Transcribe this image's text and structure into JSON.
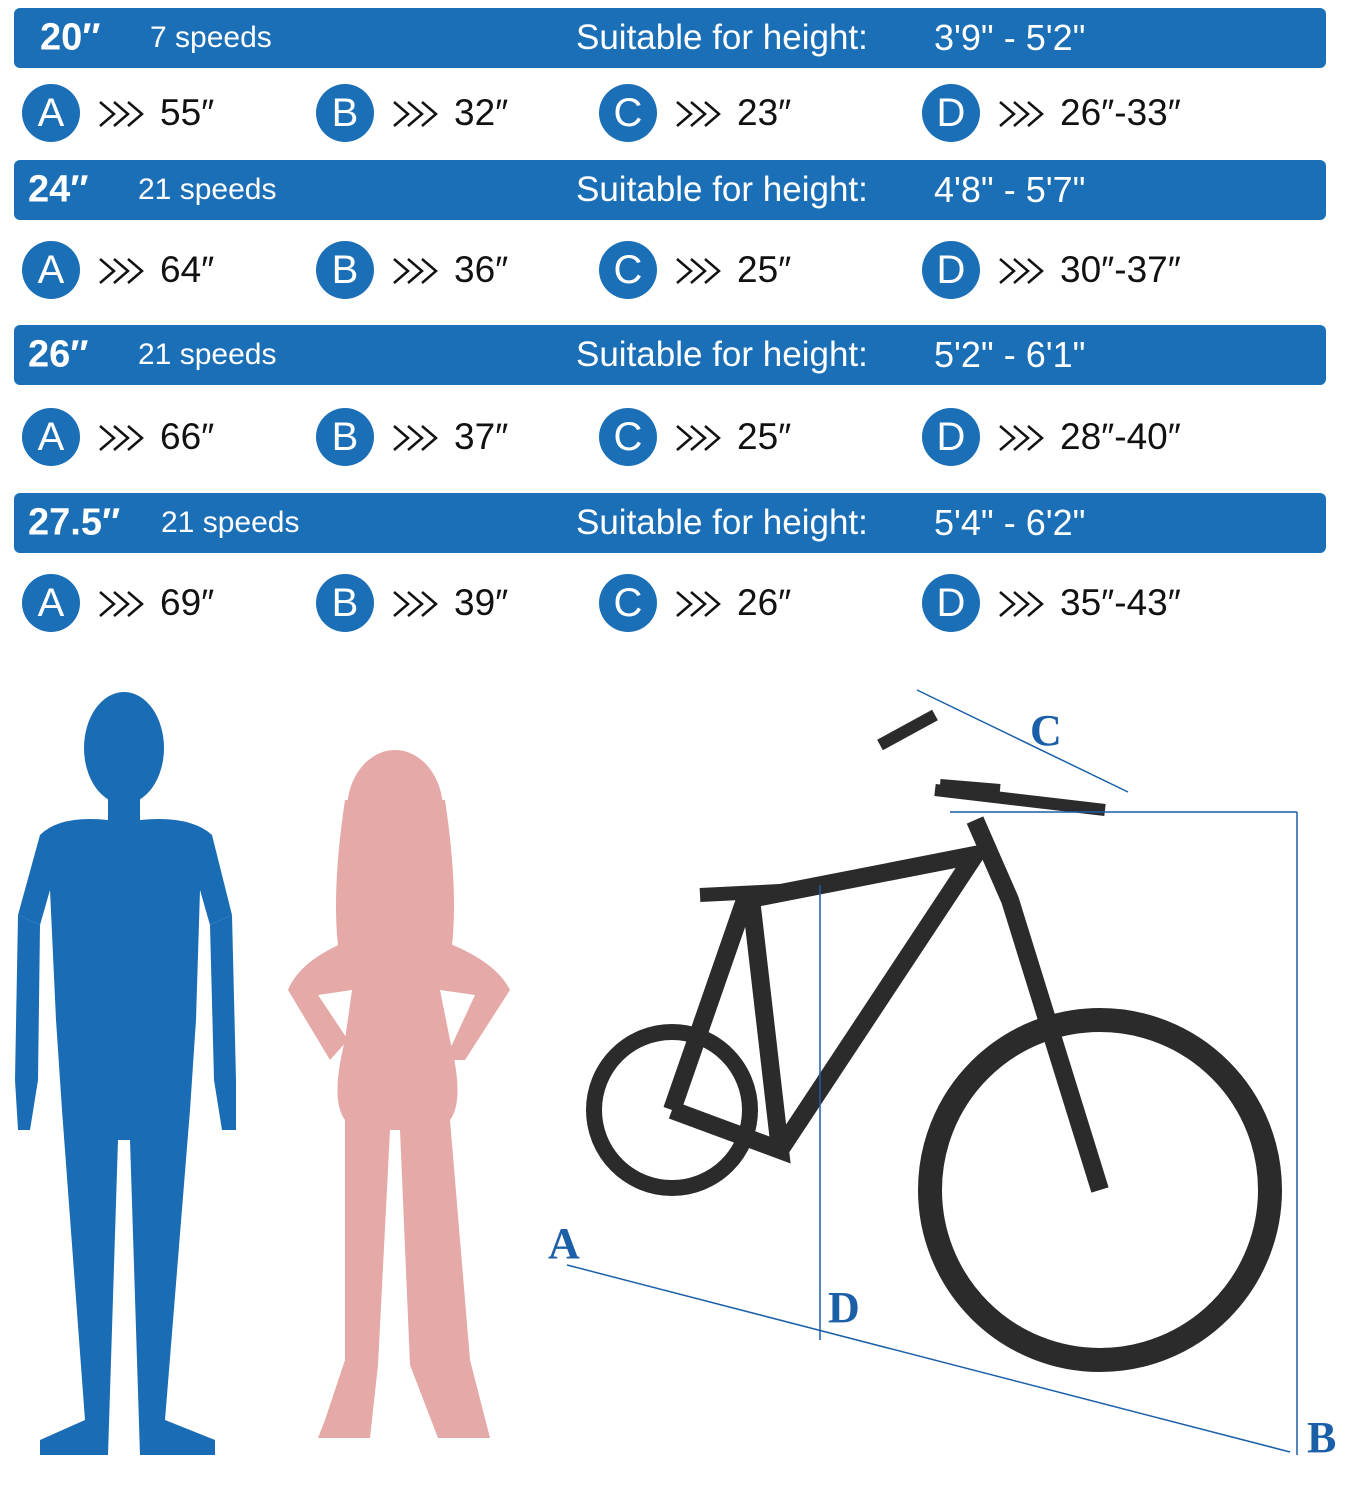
{
  "sizes": [
    {
      "size": "20″",
      "speeds": "7 speeds",
      "height_label": "Suitable for height:",
      "height": "3'9\" - 5'2\"",
      "measures": [
        {
          "letter": "A",
          "value": "55″"
        },
        {
          "letter": "B",
          "value": "32″"
        },
        {
          "letter": "C",
          "value": "23″"
        },
        {
          "letter": "D",
          "value": "26″-33″"
        }
      ]
    },
    {
      "size": "24″",
      "speeds": "21 speeds",
      "height_label": "Suitable for height:",
      "height": "4'8\" - 5'7\"",
      "measures": [
        {
          "letter": "A",
          "value": "64″"
        },
        {
          "letter": "B",
          "value": "36″"
        },
        {
          "letter": "C",
          "value": "25″"
        },
        {
          "letter": "D",
          "value": "30″-37″"
        }
      ]
    },
    {
      "size": "26″",
      "speeds": "21 speeds",
      "height_label": "Suitable for height:",
      "height": "5'2\" - 6'1\"",
      "measures": [
        {
          "letter": "A",
          "value": "66″"
        },
        {
          "letter": "B",
          "value": "37″"
        },
        {
          "letter": "C",
          "value": "25″"
        },
        {
          "letter": "D",
          "value": "28″-40″"
        }
      ]
    },
    {
      "size": "27.5″",
      "speeds": "21 speeds",
      "height_label": "Suitable for height:",
      "height": "5'4\" - 6'2\"",
      "measures": [
        {
          "letter": "A",
          "value": "69″"
        },
        {
          "letter": "B",
          "value": "39″"
        },
        {
          "letter": "C",
          "value": "26″"
        },
        {
          "letter": "D",
          "value": "35″-43″"
        }
      ]
    }
  ],
  "diagram": {
    "labels": [
      "A",
      "B",
      "C",
      "D"
    ]
  }
}
